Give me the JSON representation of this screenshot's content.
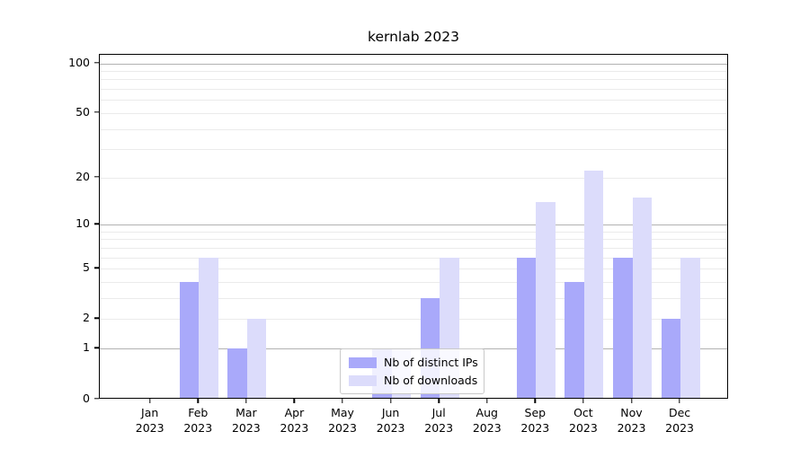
{
  "title": "kernlab 2023",
  "chart_data": {
    "type": "bar",
    "title": "kernlab 2023",
    "x_categories": [
      "Jan",
      "Feb",
      "Mar",
      "Apr",
      "May",
      "Jun",
      "Jul",
      "Aug",
      "Sep",
      "Oct",
      "Nov",
      "Dec"
    ],
    "x_year": "2023",
    "series": [
      {
        "name": "Nb of distinct IPs",
        "color": "#a9a9fa",
        "values": [
          0,
          4,
          1,
          0,
          0,
          1,
          3,
          0,
          6,
          4,
          6,
          2
        ]
      },
      {
        "name": "Nb of downloads",
        "color": "#dcdcfb",
        "values": [
          0,
          6,
          2,
          0,
          0,
          1,
          6,
          0,
          14,
          22,
          15,
          6
        ]
      }
    ],
    "y_scale": "log1p",
    "y_tick_values": [
      0,
      1,
      2,
      5,
      10,
      20,
      50,
      100
    ],
    "y_major_gridlines": [
      1,
      10,
      100
    ],
    "y_minor_gridlines": [
      2,
      3,
      4,
      5,
      6,
      7,
      8,
      9,
      20,
      30,
      40,
      50,
      60,
      70,
      80,
      90
    ],
    "ylim": [
      0,
      110
    ],
    "grid": true,
    "legend_position": "lower center",
    "colors": {
      "major_grid": "#b2b2b2",
      "minor_grid": "#ebebeb",
      "axis": "#000000"
    }
  }
}
